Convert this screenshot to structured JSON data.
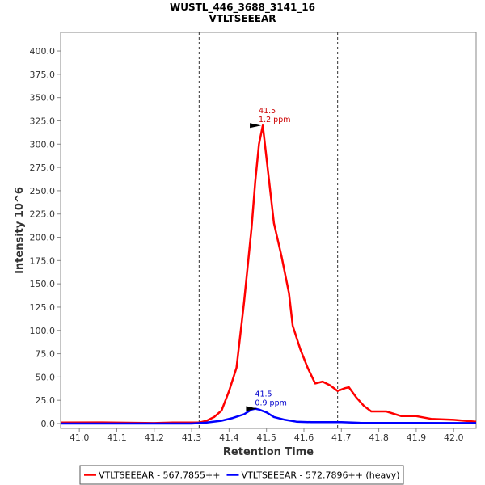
{
  "chart_data": {
    "type": "line",
    "title": "WUSTL_446_3688_3141_16",
    "subtitle": "VTLTSEEEAR",
    "xlabel": "Retention Time",
    "ylabel": "Intensity 10^6",
    "xlim": [
      40.95,
      42.06
    ],
    "ylim": [
      0,
      420
    ],
    "x_ticks": [
      "41.0",
      "41.1",
      "41.2",
      "41.3",
      "41.4",
      "41.5",
      "41.6",
      "41.7",
      "41.8",
      "41.9",
      "42.0"
    ],
    "y_ticks": [
      "0.0",
      "25.0",
      "50.0",
      "75.0",
      "100.0",
      "125.0",
      "150.0",
      "175.0",
      "200.0",
      "225.0",
      "250.0",
      "275.0",
      "300.0",
      "325.0",
      "350.0",
      "375.0",
      "400.0"
    ],
    "boundaries": [
      41.32,
      41.69
    ],
    "series": [
      {
        "name": "VTLTSEEEAR - 567.7855++",
        "color": "#ff0000",
        "points": [
          [
            40.95,
            1.0
          ],
          [
            41.05,
            1.2
          ],
          [
            41.15,
            0.8
          ],
          [
            41.2,
            0.5
          ],
          [
            41.25,
            1.0
          ],
          [
            41.3,
            1.0
          ],
          [
            41.32,
            1.0
          ],
          [
            41.34,
            3
          ],
          [
            41.36,
            7
          ],
          [
            41.38,
            14
          ],
          [
            41.4,
            35
          ],
          [
            41.42,
            60
          ],
          [
            41.44,
            130
          ],
          [
            41.46,
            210
          ],
          [
            41.47,
            260
          ],
          [
            41.48,
            300
          ],
          [
            41.49,
            320
          ],
          [
            41.5,
            285
          ],
          [
            41.52,
            215
          ],
          [
            41.54,
            180
          ],
          [
            41.56,
            140
          ],
          [
            41.57,
            105
          ],
          [
            41.59,
            80
          ],
          [
            41.61,
            60
          ],
          [
            41.63,
            43
          ],
          [
            41.65,
            45
          ],
          [
            41.67,
            41
          ],
          [
            41.69,
            35
          ],
          [
            41.71,
            38
          ],
          [
            41.72,
            39
          ],
          [
            41.74,
            28
          ],
          [
            41.76,
            19
          ],
          [
            41.78,
            13
          ],
          [
            41.82,
            13
          ],
          [
            41.86,
            8
          ],
          [
            41.9,
            8
          ],
          [
            41.94,
            5
          ],
          [
            42.0,
            4
          ],
          [
            42.06,
            2
          ]
        ]
      },
      {
        "name": "VTLTSEEEAR - 572.7896++ (heavy)",
        "color": "#0000ff",
        "points": [
          [
            40.95,
            0.0
          ],
          [
            41.3,
            0.0
          ],
          [
            41.34,
            1.0
          ],
          [
            41.38,
            3
          ],
          [
            41.41,
            6
          ],
          [
            41.44,
            10
          ],
          [
            41.46,
            15
          ],
          [
            41.47,
            16
          ],
          [
            41.48,
            15
          ],
          [
            41.5,
            12
          ],
          [
            41.52,
            7
          ],
          [
            41.55,
            4
          ],
          [
            41.58,
            2
          ],
          [
            41.62,
            1.5
          ],
          [
            41.7,
            1.5
          ],
          [
            41.75,
            0.8
          ],
          [
            42.06,
            0.5
          ]
        ]
      }
    ],
    "annotations": [
      {
        "series": 0,
        "x": 41.49,
        "y": 320,
        "line1": "41.5",
        "line2": "1.2 ppm",
        "color": "#cc0000"
      },
      {
        "series": 1,
        "x": 41.48,
        "y": 16,
        "line1": "41.5",
        "line2": "0.9 ppm",
        "color": "#0000cc"
      }
    ],
    "legend_position": "bottom"
  }
}
